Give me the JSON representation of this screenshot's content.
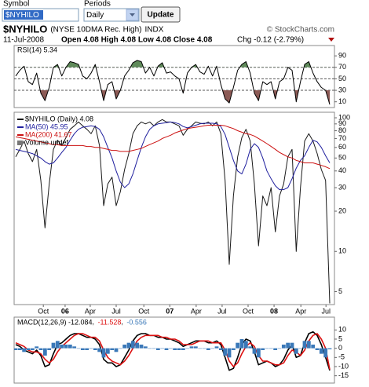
{
  "form": {
    "symbol_label": "Symbol",
    "symbol": "$NYHILO",
    "periods_label": "Periods",
    "period": "Daily",
    "button": "Update"
  },
  "header": {
    "symbol": "$NYHILO",
    "description": "(NYSE 10DMA Rec. High)",
    "exchange": "INDX",
    "brand": "© StockCharts.com",
    "date": "11-Jul-2008",
    "quote": "Open 4.08  High 4.08  Low 4.08  Close 4.08",
    "change": "Chg -0.12 (-2.79%)"
  },
  "chart_data": [
    {
      "type": "line",
      "panel": "rsi",
      "ylim": [
        0,
        108
      ],
      "yticks": [
        90,
        70,
        50,
        30,
        10
      ],
      "xlim": [
        0,
        75
      ],
      "ref_lines": [
        70,
        50,
        30
      ],
      "fill_above": {
        "value": 70,
        "color": "#5f8a5a"
      },
      "fill_below": {
        "value": 30,
        "color": "#8c5a55"
      },
      "series": [
        {
          "name": "RSI(14) 5.34",
          "color": "#000000",
          "values": [
            55,
            65,
            72,
            45,
            40,
            60,
            25,
            12,
            35,
            70,
            75,
            55,
            70,
            80,
            78,
            75,
            55,
            50,
            60,
            75,
            45,
            12,
            40,
            45,
            15,
            30,
            55,
            65,
            78,
            82,
            80,
            60,
            70,
            55,
            72,
            78,
            60,
            62,
            55,
            50,
            25,
            60,
            70,
            75,
            62,
            58,
            72,
            55,
            72,
            40,
            15,
            8,
            35,
            65,
            75,
            80,
            60,
            25,
            12,
            45,
            40,
            45,
            15,
            45,
            50,
            70,
            65,
            10,
            45,
            75,
            80,
            60,
            45,
            35,
            30,
            5.34
          ]
        }
      ]
    },
    {
      "type": "line",
      "panel": "price",
      "log_scale": true,
      "ylim": [
        4,
        110
      ],
      "yticks": [
        100,
        90,
        80,
        70,
        60,
        50,
        40,
        30,
        20,
        10,
        5
      ],
      "xlim": [
        0,
        75
      ],
      "xticks": [
        {
          "value": 6.6,
          "label": "Oct"
        },
        {
          "value": 11.8,
          "label": "06"
        },
        {
          "value": 17.8,
          "label": "Apr"
        },
        {
          "value": 24,
          "label": "Jul"
        },
        {
          "value": 30.6,
          "label": "Oct"
        },
        {
          "value": 36.8,
          "label": "07"
        },
        {
          "value": 43.1,
          "label": "Apr"
        },
        {
          "value": 49.3,
          "label": "Jul"
        },
        {
          "value": 55.5,
          "label": "Oct"
        },
        {
          "value": 61.7,
          "label": "08"
        },
        {
          "value": 68.1,
          "label": "Apr"
        },
        {
          "value": 74.1,
          "label": "Jul"
        }
      ],
      "legend_extra": "Volume undef",
      "series": [
        {
          "name": "$NYHILO (Daily) 4.08",
          "color": "#1a1a1a",
          "values": [
            51,
            58,
            67,
            54,
            47,
            58,
            34,
            15,
            32,
            58,
            68,
            62,
            71,
            82,
            87,
            93,
            87,
            82,
            76,
            87,
            62,
            22,
            32,
            36,
            22,
            28,
            41,
            54,
            76,
            87,
            93,
            90,
            93,
            87,
            93,
            97,
            93,
            93,
            90,
            87,
            74,
            82,
            87,
            93,
            91,
            90,
            93,
            87,
            93,
            76,
            34,
            8,
            26,
            51,
            71,
            82,
            67,
            32,
            11,
            26,
            22,
            30,
            14,
            26,
            32,
            51,
            58,
            10,
            30,
            67,
            76,
            67,
            54,
            41,
            34,
            4.08
          ]
        },
        {
          "name": "MA(50) 45.95",
          "color": "#1f1f9e",
          "values": [
            58,
            57,
            56,
            55,
            54,
            52,
            50,
            47,
            45,
            46,
            50,
            55,
            60,
            68,
            76,
            82,
            85,
            86,
            87,
            86,
            82,
            72,
            60,
            50,
            40,
            33,
            30,
            32,
            38,
            48,
            60,
            72,
            82,
            87,
            90,
            91,
            92,
            93,
            92,
            90,
            86,
            84,
            86,
            88,
            90,
            91,
            91,
            91,
            90,
            86,
            75,
            60,
            48,
            40,
            38,
            45,
            58,
            64,
            60,
            50,
            40,
            35,
            31,
            29,
            29,
            30,
            35,
            42,
            48,
            52,
            60,
            68,
            66,
            60,
            52,
            45.95
          ]
        },
        {
          "name": "MA(200) 41.67",
          "color": "#cc1111",
          "values": [
            72,
            71,
            70,
            69,
            68,
            67,
            66,
            65,
            64,
            63,
            63,
            62,
            62,
            62,
            62,
            62,
            62,
            61,
            61,
            60,
            60,
            59,
            58,
            57,
            57,
            56,
            56,
            56,
            57,
            58,
            59,
            61,
            63,
            65,
            67,
            70,
            72,
            74,
            77,
            79,
            81,
            83,
            84,
            85,
            86,
            87,
            88,
            88,
            88,
            88,
            87,
            85,
            83,
            80,
            78,
            76,
            75,
            73,
            70,
            67,
            64,
            61,
            58,
            55,
            53,
            51,
            50,
            48,
            47,
            46,
            46,
            46,
            45,
            44,
            43,
            41.67
          ]
        }
      ]
    },
    {
      "type": "macd",
      "panel": "macd",
      "ylim": [
        -19,
        17
      ],
      "yticks": [
        10,
        5,
        0,
        -5,
        -10,
        -15
      ],
      "xlim": [
        0,
        75
      ],
      "series": [
        {
          "name": "MACD(12,26,9) -12.084",
          "color": "#000000",
          "values": [
            2,
            1,
            -1,
            -2,
            -3,
            -1,
            -4,
            -10,
            -9,
            -3,
            2,
            3,
            5,
            7,
            8,
            8,
            7,
            6,
            6,
            5,
            2,
            -6,
            -8,
            -8,
            -10,
            -9,
            -5,
            -1,
            4,
            7,
            8,
            8,
            7,
            7,
            6,
            6,
            5,
            5,
            4,
            3,
            1,
            2,
            3,
            4,
            4,
            4,
            3,
            3,
            4,
            2,
            -5,
            -12,
            -11,
            -5,
            2,
            5,
            4,
            -2,
            -9,
            -8,
            -7,
            -8,
            -10,
            -9,
            -6,
            -1,
            2,
            -5,
            -4,
            3,
            8,
            9,
            7,
            2,
            -5,
            -12.084
          ]
        },
        {
          "name": "-11.528",
          "color": "#dd1111",
          "values": [
            3,
            2,
            1,
            -1,
            -2,
            -2,
            -3,
            -6,
            -8,
            -6,
            -2,
            1,
            3,
            5,
            7,
            8,
            8,
            7,
            6,
            6,
            4,
            -1,
            -5,
            -7,
            -8,
            -9,
            -7,
            -4,
            0,
            4,
            6,
            7,
            7,
            7,
            7,
            6,
            6,
            5,
            5,
            4,
            2,
            2,
            2,
            3,
            4,
            4,
            4,
            3,
            3,
            3,
            -1,
            -7,
            -10,
            -8,
            -3,
            1,
            3,
            1,
            -4,
            -7,
            -7,
            -8,
            -9,
            -9,
            -8,
            -4,
            -1,
            -2,
            -4,
            -1,
            4,
            7,
            8,
            5,
            0,
            -11.528
          ]
        },
        {
          "name": "-0.556",
          "color": "#3a78b8",
          "histogram": true,
          "values": [
            -1,
            -1,
            -2,
            -1,
            -1,
            1,
            -1,
            -4,
            -1,
            3,
            4,
            2,
            2,
            2,
            1,
            0,
            -1,
            -1,
            0,
            -1,
            -2,
            -5,
            -3,
            -1,
            -2,
            0,
            2,
            3,
            4,
            3,
            2,
            1,
            0,
            0,
            -1,
            0,
            -1,
            0,
            -1,
            -1,
            -1,
            0,
            1,
            1,
            0,
            0,
            -1,
            0,
            1,
            -1,
            -4,
            -5,
            -1,
            3,
            5,
            4,
            1,
            -3,
            -5,
            -1,
            0,
            0,
            -1,
            0,
            2,
            3,
            3,
            -3,
            0,
            4,
            4,
            2,
            -1,
            -3,
            -5,
            -0.556
          ]
        }
      ]
    }
  ]
}
